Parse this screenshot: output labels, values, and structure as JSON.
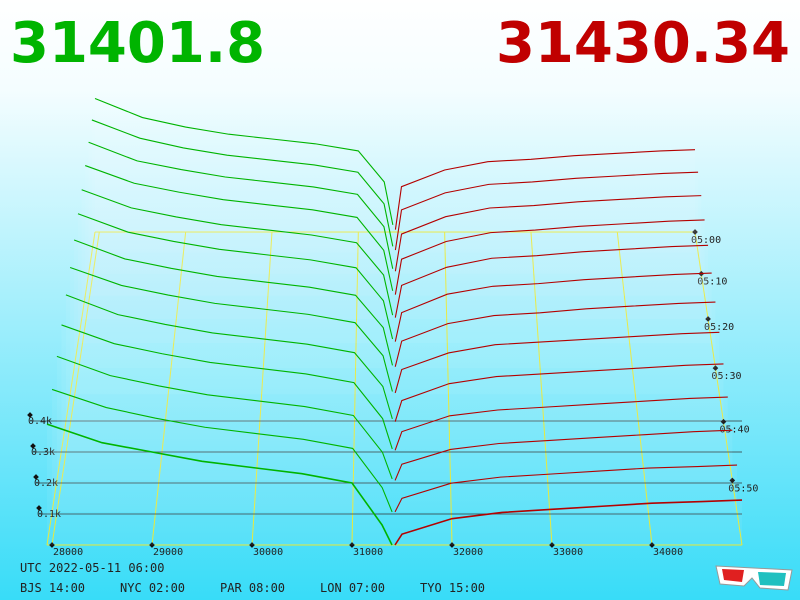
{
  "header": {
    "bid_price": "31401.8",
    "ask_price": "31430.34"
  },
  "chart_data": {
    "type": "depth3d",
    "bid_color": "#00b400",
    "ask_color": "#b40000",
    "grid_color": "#e8e830",
    "xlim": [
      27950,
      34900
    ],
    "xticks": [
      28000,
      29000,
      30000,
      31000,
      32000,
      33000,
      34000
    ],
    "zticks": [
      {
        "value": 100,
        "label": "0.1k"
      },
      {
        "value": 200,
        "label": "0.2k"
      },
      {
        "value": 300,
        "label": "0.3k"
      },
      {
        "value": 400,
        "label": "0.4k"
      }
    ],
    "time_ticks": [
      "05:00",
      "05:10",
      "05:20",
      "05:30",
      "05:40",
      "05:50"
    ],
    "bid_x": [
      27950,
      28500,
      29000,
      29500,
      30000,
      30500,
      31000,
      31300,
      31400
    ],
    "ask_x": [
      31430,
      31500,
      32000,
      32500,
      33000,
      33500,
      34000,
      34500,
      34900
    ],
    "snapshots": [
      {
        "bids": [
          560,
          480,
          440,
          410,
          390,
          370,
          340,
          210,
          30
        ],
        "asks": [
          10,
          190,
          260,
          295,
          305,
          320,
          330,
          340,
          345
        ]
      },
      {
        "bids": [
          545,
          470,
          430,
          400,
          380,
          360,
          330,
          200,
          25
        ],
        "asks": [
          10,
          175,
          245,
          280,
          290,
          305,
          315,
          325,
          330
        ]
      },
      {
        "bids": [
          530,
          455,
          420,
          390,
          370,
          350,
          320,
          190,
          20
        ],
        "asks": [
          10,
          160,
          230,
          265,
          275,
          290,
          300,
          310,
          315
        ]
      },
      {
        "bids": [
          515,
          445,
          410,
          380,
          360,
          340,
          310,
          180,
          20
        ],
        "asks": [
          5,
          145,
          215,
          250,
          260,
          275,
          285,
          295,
          300
        ]
      },
      {
        "bids": [
          500,
          430,
          395,
          365,
          345,
          325,
          295,
          170,
          15
        ],
        "asks": [
          5,
          130,
          200,
          235,
          245,
          260,
          270,
          280,
          285
        ]
      },
      {
        "bids": [
          490,
          420,
          385,
          355,
          335,
          315,
          285,
          160,
          15
        ],
        "asks": [
          5,
          115,
          185,
          215,
          225,
          240,
          250,
          260,
          265
        ]
      },
      {
        "bids": [
          475,
          405,
          370,
          340,
          320,
          300,
          270,
          150,
          10
        ],
        "asks": [
          5,
          100,
          165,
          195,
          205,
          220,
          230,
          240,
          245
        ]
      },
      {
        "bids": [
          460,
          395,
          360,
          330,
          310,
          290,
          260,
          140,
          10
        ],
        "asks": [
          5,
          90,
          150,
          180,
          190,
          200,
          210,
          220,
          225
        ]
      },
      {
        "bids": [
          450,
          380,
          345,
          315,
          295,
          275,
          245,
          125,
          10
        ],
        "asks": [
          0,
          75,
          135,
          160,
          170,
          180,
          190,
          200,
          205
        ]
      },
      {
        "bids": [
          435,
          370,
          335,
          305,
          285,
          265,
          235,
          110,
          5
        ],
        "asks": [
          0,
          65,
          120,
          140,
          150,
          160,
          170,
          180,
          185
        ]
      },
      {
        "bids": [
          420,
          355,
          320,
          290,
          270,
          250,
          220,
          95,
          5
        ],
        "asks": [
          0,
          55,
          105,
          125,
          135,
          145,
          155,
          165,
          170
        ]
      },
      {
        "bids": [
          405,
          345,
          310,
          280,
          260,
          240,
          210,
          80,
          0
        ],
        "asks": [
          0,
          45,
          95,
          115,
          125,
          135,
          145,
          150,
          155
        ]
      },
      {
        "bids": [
          390,
          330,
          300,
          270,
          250,
          230,
          200,
          65,
          0
        ],
        "asks": [
          0,
          35,
          85,
          105,
          115,
          125,
          135,
          140,
          145
        ]
      }
    ]
  },
  "footer": {
    "utc": "UTC 2022-05-11 06:00",
    "cities": [
      "BJS 14:00",
      "NYC 02:00",
      "PAR 08:00",
      "LON 07:00",
      "TYO 15:00"
    ]
  }
}
